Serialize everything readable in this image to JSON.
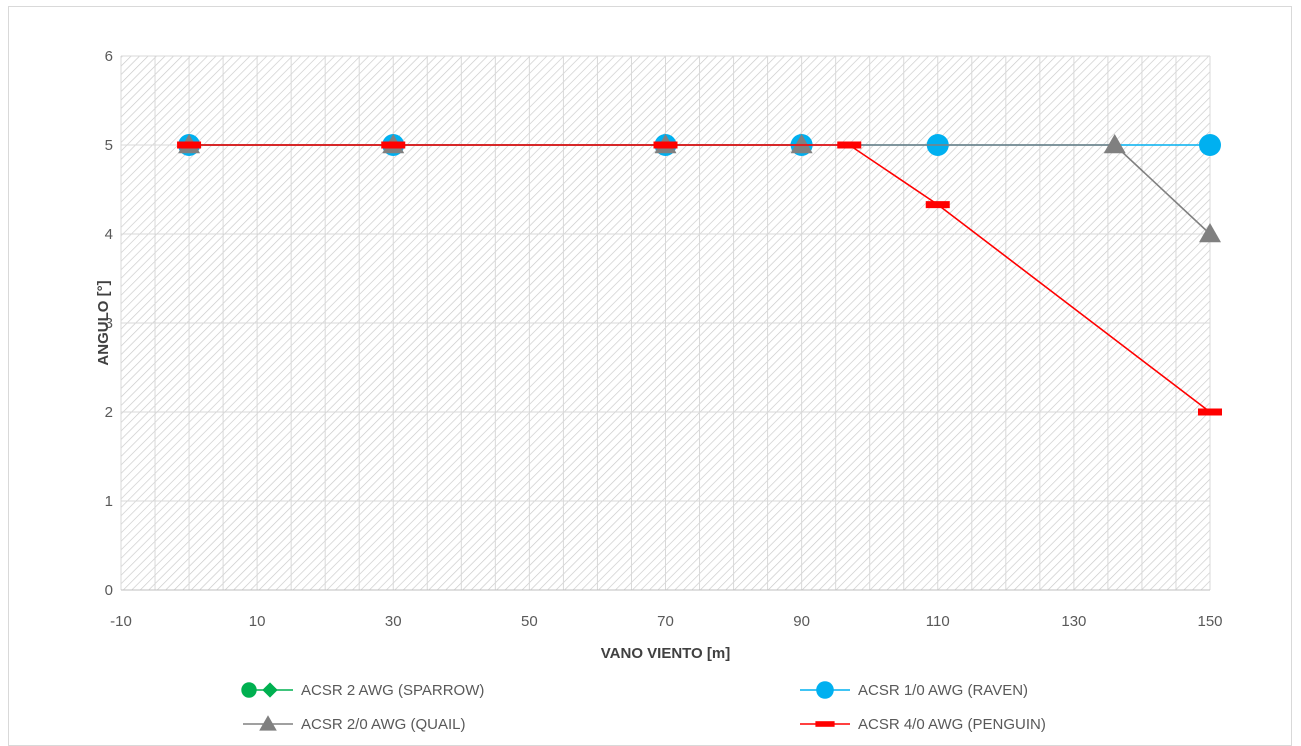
{
  "chart_data": {
    "type": "line",
    "title": "",
    "xlabel": "VANO VIENTO [m]",
    "ylabel": "ANGULO [°]",
    "xlim": [
      -10,
      150
    ],
    "ylim": [
      0,
      6
    ],
    "xticks": [
      -10,
      10,
      30,
      50,
      70,
      90,
      110,
      130,
      150
    ],
    "yticks": [
      0,
      1,
      2,
      3,
      4,
      5,
      6
    ],
    "grid": true,
    "background_pattern": "diagonal-hatch",
    "legend_position": "bottom",
    "series": [
      {
        "name": "ACSR 2 AWG (SPARROW)",
        "color": "#00b050",
        "marker": "diamond",
        "x": [
          0,
          30,
          70,
          90
        ],
        "y": [
          5,
          5,
          5,
          5
        ]
      },
      {
        "name": "ACSR 1/0 AWG (RAVEN)",
        "color": "#00b0f0",
        "marker": "circle",
        "x": [
          0,
          30,
          70,
          90,
          110,
          150
        ],
        "y": [
          5,
          5,
          5,
          5,
          5,
          5
        ]
      },
      {
        "name": "ACSR 2/0 AWG (QUAIL)",
        "color": "#808080",
        "marker": "triangle",
        "x": [
          0,
          30,
          70,
          90,
          136,
          150
        ],
        "y": [
          5,
          5,
          5,
          5,
          5,
          4
        ]
      },
      {
        "name": "ACSR 4/0 AWG (PENGUIN)",
        "color": "#ff0000",
        "marker": "dash",
        "x": [
          0,
          30,
          70,
          97,
          110,
          150
        ],
        "y": [
          5,
          5,
          5,
          5,
          4.33,
          2
        ]
      }
    ]
  }
}
